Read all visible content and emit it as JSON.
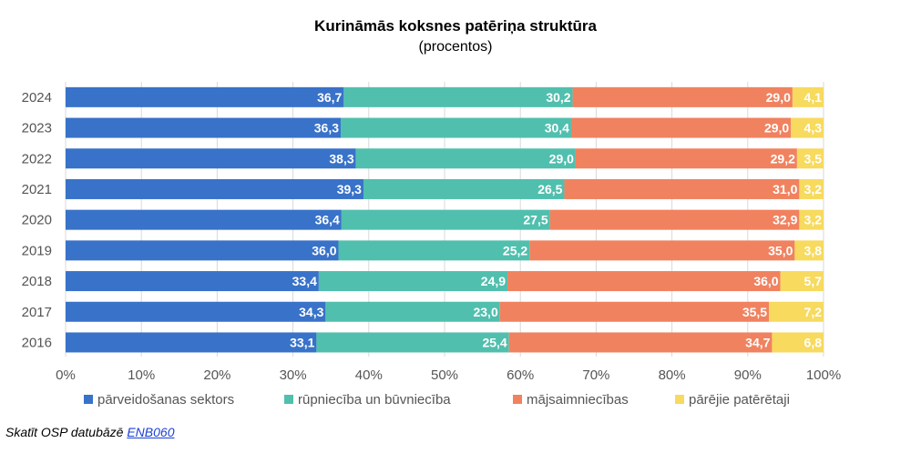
{
  "chart_data": {
    "type": "bar",
    "orientation": "horizontal",
    "stacked": "percent",
    "title": "Kurināmās koksnes patēriņa struktūra",
    "subtitle": "(procentos)",
    "categories": [
      "2024",
      "2023",
      "2022",
      "2021",
      "2020",
      "2019",
      "2018",
      "2017",
      "2016"
    ],
    "series": [
      {
        "name": "pārveidošanas sektors",
        "color": "#3872c9",
        "values": [
          36.7,
          36.3,
          38.3,
          39.3,
          36.4,
          36.0,
          33.4,
          34.3,
          33.1
        ],
        "labels": [
          "36,7",
          "36,3",
          "38,3",
          "39,3",
          "36,4",
          "36,0",
          "33,4",
          "34,3",
          "33,1"
        ]
      },
      {
        "name": "rūpniecība un būvniecība",
        "color": "#50bfae",
        "values": [
          30.2,
          30.4,
          29.0,
          26.5,
          27.5,
          25.2,
          24.9,
          23.0,
          25.4
        ],
        "labels": [
          "30,2",
          "30,4",
          "29,0",
          "26,5",
          "27,5",
          "25,2",
          "24,9",
          "23,0",
          "25,4"
        ]
      },
      {
        "name": "mājsaimniecības",
        "color": "#f0825f",
        "values": [
          29.0,
          29.0,
          29.2,
          31.0,
          32.9,
          35.0,
          36.0,
          35.5,
          34.7
        ],
        "labels": [
          "29,0",
          "29,0",
          "29,2",
          "31,0",
          "32,9",
          "35,0",
          "36,0",
          "35,5",
          "34,7"
        ]
      },
      {
        "name": "pārējie patērētaji",
        "color": "#f7da5e",
        "values": [
          4.1,
          4.3,
          3.5,
          3.2,
          3.2,
          3.8,
          5.7,
          7.2,
          6.8
        ],
        "labels": [
          "4,1",
          "4,3",
          "3,5",
          "3,2",
          "3,2",
          "3,8",
          "5,7",
          "7,2",
          "6,8"
        ]
      }
    ],
    "xlim": [
      0,
      100
    ],
    "xticks": [
      "0%",
      "10%",
      "20%",
      "30%",
      "40%",
      "50%",
      "60%",
      "70%",
      "80%",
      "90%",
      "100%"
    ],
    "grid": true,
    "legend_position": "bottom"
  },
  "source": {
    "prefix": "Skatīt OSP datubāzē ",
    "link_text": "ENB060"
  }
}
